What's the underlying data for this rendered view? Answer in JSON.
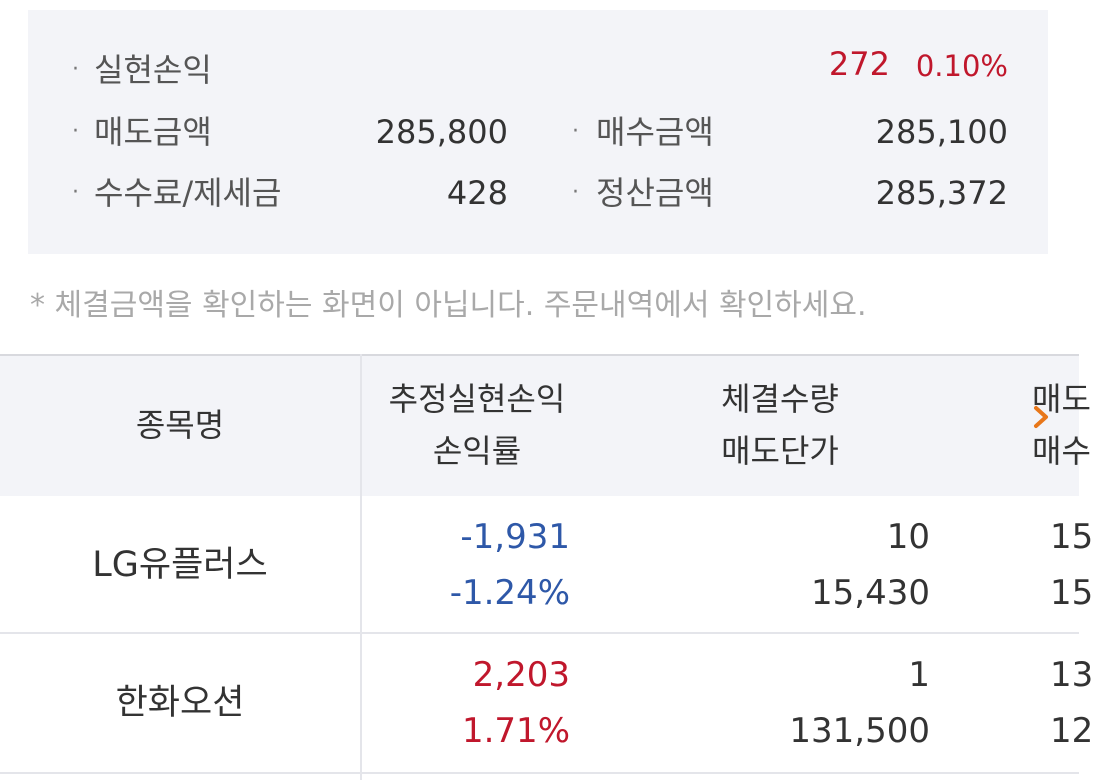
{
  "summary": {
    "realized_label": "실현손익",
    "realized_value": "272",
    "realized_rate": "0.10%",
    "sell_amount_label": "매도금액",
    "sell_amount_value": "285,800",
    "buy_amount_label": "매수금액",
    "buy_amount_value": "285,100",
    "fee_label": "수수료/제세금",
    "fee_value": "428",
    "settle_label": "정산금액",
    "settle_value": "285,372",
    "bullet": "·"
  },
  "notice": "* 체결금액을 확인하는 화면이 아닙니다. 주문내역에서 확인하세요.",
  "table": {
    "headers": {
      "name": "종목명",
      "pnl_line1": "추정실현손익",
      "pnl_line2": "손익률",
      "qty_line1": "체결수량",
      "qty_line2": "매도단가",
      "next_line1": "매도",
      "next_line2": "매수"
    },
    "rows": [
      {
        "name": "LG유플러스",
        "pnl": "-1,931",
        "rate": "-1.24%",
        "qty": "10",
        "price": "15,430",
        "next1": "15",
        "next2": "15"
      },
      {
        "name": "한화오션",
        "pnl": "2,203",
        "rate": "1.71%",
        "qty": "1",
        "price": "131,500",
        "next1": "13",
        "next2": "12"
      }
    ]
  },
  "colors": {
    "positive": "#c0172c",
    "negative": "#2e58a8",
    "accent_chevron": "#e8771a"
  },
  "icons": {
    "scroll_right": "chevron-right-icon"
  }
}
